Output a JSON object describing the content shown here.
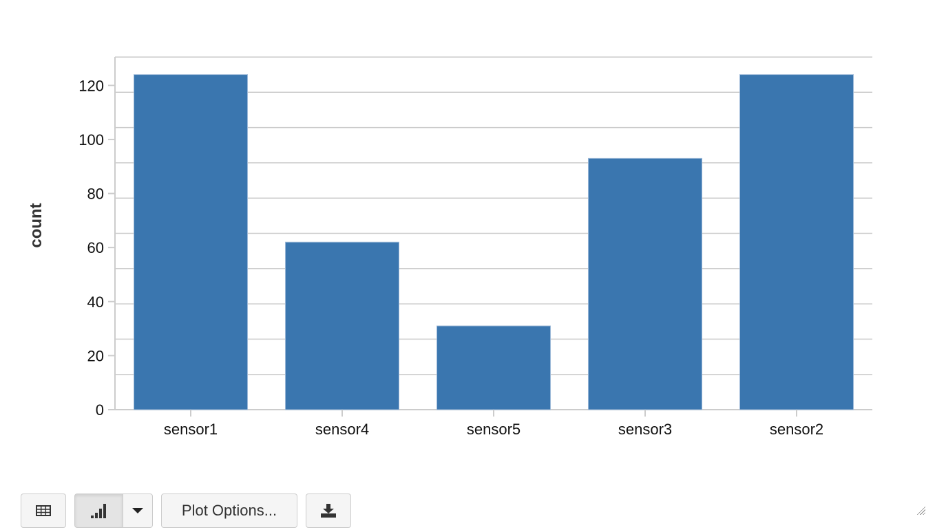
{
  "chart_data": {
    "type": "bar",
    "categories": [
      "sensor1",
      "sensor4",
      "sensor5",
      "sensor3",
      "sensor2"
    ],
    "values": [
      124,
      62,
      31,
      93,
      124
    ],
    "title": "",
    "xlabel": "",
    "ylabel": "count",
    "ylim": [
      0,
      130
    ],
    "yticks": [
      0,
      20,
      40,
      60,
      80,
      100,
      120
    ],
    "grid": true,
    "color": "#3a76af"
  },
  "toolbar": {
    "plot_options_label": "Plot Options..."
  }
}
